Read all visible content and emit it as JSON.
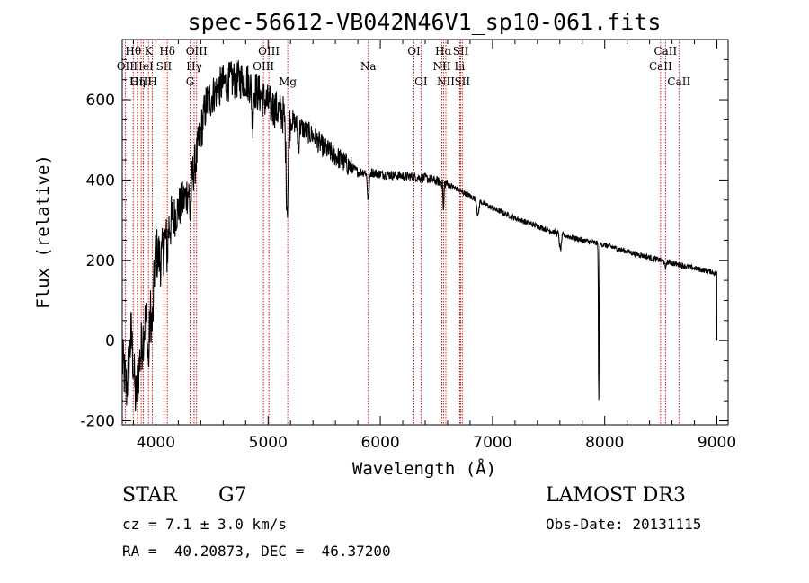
{
  "chart_data": {
    "type": "line",
    "title": "spec-56612-VB042N46V1_sp10-061.fits",
    "xlabel": "Wavelength (Å)",
    "ylabel": "Flux (relative)",
    "xlim": [
      3700,
      9100
    ],
    "ylim": [
      -210,
      750
    ],
    "xticks": [
      4000,
      5000,
      6000,
      7000,
      8000,
      9000
    ],
    "yticks": [
      -200,
      0,
      200,
      400,
      600
    ],
    "grid": false,
    "line_color": "#cc0000",
    "spectrum_color": "#000000",
    "spectrum_anchors": [
      {
        "x": 3700,
        "y": -50
      },
      {
        "x": 3740,
        "y": -120
      },
      {
        "x": 3780,
        "y": 20
      },
      {
        "x": 3820,
        "y": -150
      },
      {
        "x": 3860,
        "y": -40
      },
      {
        "x": 3900,
        "y": 40
      },
      {
        "x": 3950,
        "y": 120
      },
      {
        "x": 4000,
        "y": 220
      },
      {
        "x": 4050,
        "y": 200
      },
      {
        "x": 4100,
        "y": 280
      },
      {
        "x": 4150,
        "y": 300
      },
      {
        "x": 4200,
        "y": 330
      },
      {
        "x": 4250,
        "y": 350
      },
      {
        "x": 4300,
        "y": 380
      },
      {
        "x": 4350,
        "y": 440
      },
      {
        "x": 4400,
        "y": 520
      },
      {
        "x": 4450,
        "y": 590
      },
      {
        "x": 4500,
        "y": 610
      },
      {
        "x": 4600,
        "y": 640
      },
      {
        "x": 4700,
        "y": 650
      },
      {
        "x": 4800,
        "y": 650
      },
      {
        "x": 4900,
        "y": 620
      },
      {
        "x": 5000,
        "y": 590
      },
      {
        "x": 5100,
        "y": 570
      },
      {
        "x": 5200,
        "y": 550
      },
      {
        "x": 5300,
        "y": 530
      },
      {
        "x": 5400,
        "y": 510
      },
      {
        "x": 5500,
        "y": 480
      },
      {
        "x": 5600,
        "y": 460
      },
      {
        "x": 5700,
        "y": 440
      },
      {
        "x": 5800,
        "y": 420
      },
      {
        "x": 5900,
        "y": 420
      },
      {
        "x": 6000,
        "y": 415
      },
      {
        "x": 6200,
        "y": 410
      },
      {
        "x": 6400,
        "y": 405
      },
      {
        "x": 6600,
        "y": 390
      },
      {
        "x": 6800,
        "y": 360
      },
      {
        "x": 7000,
        "y": 330
      },
      {
        "x": 7200,
        "y": 305
      },
      {
        "x": 7400,
        "y": 285
      },
      {
        "x": 7600,
        "y": 265
      },
      {
        "x": 7800,
        "y": 250
      },
      {
        "x": 8000,
        "y": 238
      },
      {
        "x": 8200,
        "y": 222
      },
      {
        "x": 8400,
        "y": 207
      },
      {
        "x": 8600,
        "y": 193
      },
      {
        "x": 8800,
        "y": 180
      },
      {
        "x": 8950,
        "y": 172
      },
      {
        "x": 9000,
        "y": 165
      }
    ],
    "absorption_features": [
      {
        "center": 3934,
        "depth": 140,
        "width": 10
      },
      {
        "center": 3969,
        "depth": 120,
        "width": 10
      },
      {
        "center": 4101,
        "depth": 60,
        "width": 6
      },
      {
        "center": 4307,
        "depth": 80,
        "width": 6
      },
      {
        "center": 4861,
        "depth": 90,
        "width": 6
      },
      {
        "center": 5170,
        "depth": 220,
        "width": 10
      },
      {
        "center": 5270,
        "depth": 60,
        "width": 6
      },
      {
        "center": 5893,
        "depth": 70,
        "width": 8
      },
      {
        "center": 6563,
        "depth": 70,
        "width": 4
      },
      {
        "center": 6870,
        "depth": 40,
        "width": 8
      },
      {
        "center": 7605,
        "depth": 40,
        "width": 8
      },
      {
        "center": 7947,
        "depth": 410,
        "width": 3
      },
      {
        "center": 8542,
        "depth": 25,
        "width": 4
      }
    ],
    "noise_segments": [
      {
        "from": 3700,
        "to": 4150,
        "amplitude": 70
      },
      {
        "from": 4150,
        "to": 4500,
        "amplitude": 55
      },
      {
        "from": 4500,
        "to": 5200,
        "amplitude": 50
      },
      {
        "from": 5200,
        "to": 5750,
        "amplitude": 28
      },
      {
        "from": 5750,
        "to": 6600,
        "amplitude": 12
      },
      {
        "from": 6600,
        "to": 9000,
        "amplitude": 7
      }
    ],
    "end_drop": {
      "x": 9000,
      "y": 0
    },
    "spectral_lines": [
      {
        "label": "Hθ",
        "wavelength": 3798,
        "row": 0
      },
      {
        "label": "OII",
        "wavelength": 3727,
        "row": 1
      },
      {
        "label": "OIII",
        "wavelength": 3869,
        "row": 2
      },
      {
        "label": "K",
        "wavelength": 3934,
        "row": 0
      },
      {
        "label": "HeI",
        "wavelength": 3889,
        "row": 1
      },
      {
        "label": "Hη",
        "wavelength": 3835,
        "row": 2
      },
      {
        "label": "H",
        "wavelength": 3969,
        "row": 2
      },
      {
        "label": "Hδ",
        "wavelength": 4102,
        "row": 0
      },
      {
        "label": "SII",
        "wavelength": 4072,
        "row": 1
      },
      {
        "label": "OIII",
        "wavelength": 4363,
        "row": 0
      },
      {
        "label": "Hγ",
        "wavelength": 4341,
        "row": 1
      },
      {
        "label": "G",
        "wavelength": 4305,
        "row": 2
      },
      {
        "label": "OIII",
        "wavelength": 5007,
        "row": 0
      },
      {
        "label": "OIII",
        "wavelength": 4959,
        "row": 1
      },
      {
        "label": "Mg",
        "wavelength": 5175,
        "row": 2
      },
      {
        "label": "Na",
        "wavelength": 5893,
        "row": 1
      },
      {
        "label": "OI",
        "wavelength": 6300,
        "row": 0
      },
      {
        "label": "OI",
        "wavelength": 6363,
        "row": 2
      },
      {
        "label": "Hα",
        "wavelength": 6563,
        "row": 0
      },
      {
        "label": "NII",
        "wavelength": 6548,
        "row": 1
      },
      {
        "label": "NII",
        "wavelength": 6584,
        "row": 2
      },
      {
        "label": "SII",
        "wavelength": 6717,
        "row": 0
      },
      {
        "label": "Li",
        "wavelength": 6708,
        "row": 1
      },
      {
        "label": "SII",
        "wavelength": 6731,
        "row": 2
      },
      {
        "label": "CaII",
        "wavelength": 8542,
        "row": 0
      },
      {
        "label": "CaII",
        "wavelength": 8498,
        "row": 1
      },
      {
        "label": "CaII",
        "wavelength": 8662,
        "row": 2
      }
    ]
  },
  "info": {
    "class_label": "STAR",
    "subclass_label": "G7",
    "survey": "LAMOST DR3",
    "cz": "cz = 7.1 ± 3.0 km/s",
    "obs_date": "Obs-Date: 20131115",
    "coords": "RA =  40.20873, DEC =  46.37200"
  }
}
